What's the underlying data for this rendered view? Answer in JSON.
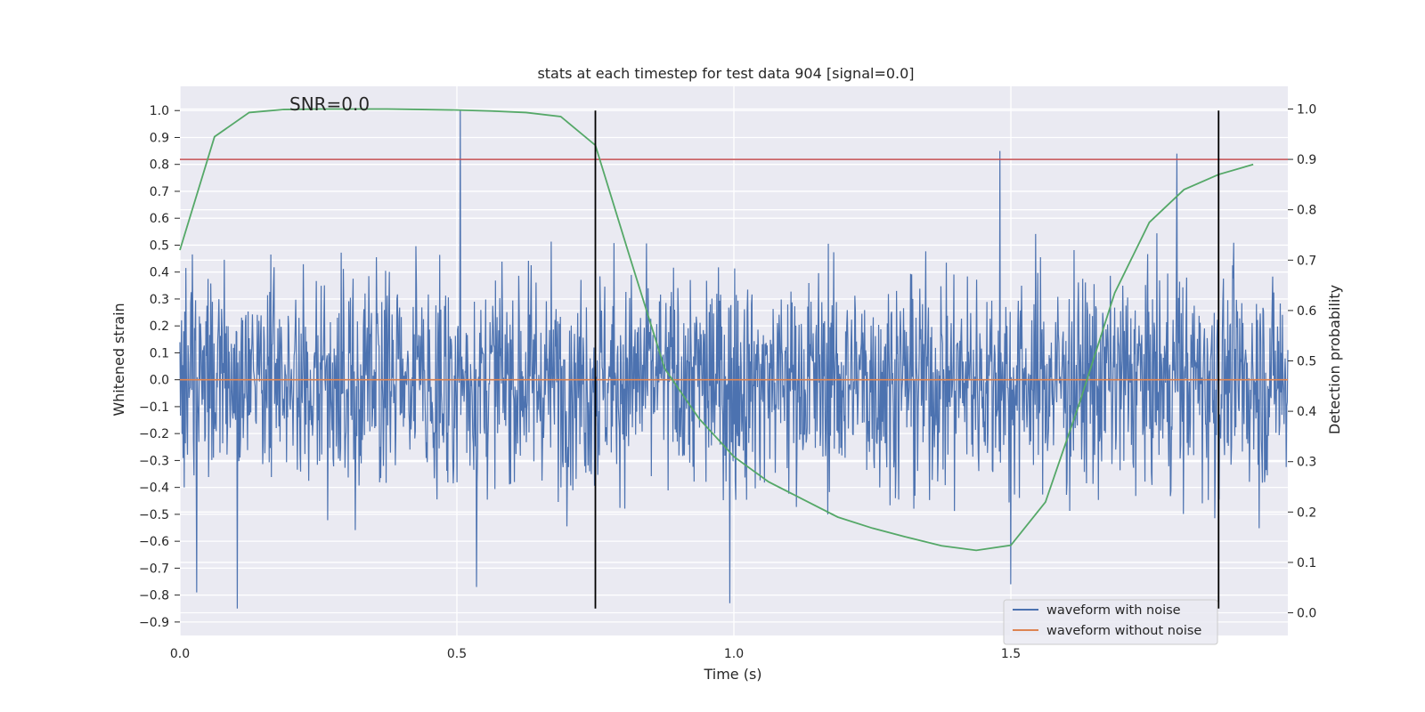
{
  "chart_data": {
    "type": "line",
    "title": "stats at each timestep for test data 904 [signal=0.0]",
    "xlabel": "Time (s)",
    "ylabel": "Whitened strain",
    "y2label": "Detection probability",
    "annotation": "SNR=0.0",
    "xlim": [
      0.0,
      2.0
    ],
    "ylim": [
      -0.95,
      1.09
    ],
    "y2lim": [
      -0.045,
      1.045
    ],
    "xticks": [
      0.0,
      0.5,
      1.0,
      1.5
    ],
    "xtick_labels": [
      "0.0",
      "0.5",
      "1.0",
      "1.5"
    ],
    "yticks": [
      1.0,
      0.9,
      0.8,
      0.7,
      0.6,
      0.5,
      0.4,
      0.3,
      0.2,
      0.1,
      0.0,
      -0.1,
      -0.2,
      -0.3,
      -0.4,
      -0.5,
      -0.6,
      -0.7,
      -0.8,
      -0.9
    ],
    "ytick_labels": [
      "1.0",
      "0.9",
      "0.8",
      "0.7",
      "0.6",
      "0.5",
      "0.4",
      "0.3",
      "0.2",
      "0.1",
      "0.0",
      "−0.1",
      "−0.2",
      "−0.3",
      "−0.4",
      "−0.5",
      "−0.6",
      "−0.7",
      "−0.8",
      "−0.9"
    ],
    "y2ticks": [
      1.0,
      0.9,
      0.8,
      0.7,
      0.6,
      0.5,
      0.4,
      0.3,
      0.2,
      0.1,
      0.0
    ],
    "y2tick_labels": [
      "1.0",
      "0.9",
      "0.8",
      "0.7",
      "0.6",
      "0.5",
      "0.4",
      "0.3",
      "0.2",
      "0.1",
      "0.0"
    ],
    "grid": true,
    "legend_position": "bottom-right",
    "series": [
      {
        "name": "waveform with noise",
        "axis": "left",
        "color": "#4c72b0",
        "description": "noise trace, 2048 samples over 0-2 s, amplitude roughly -0.85 to 1.0",
        "sample_count": 2048,
        "x_range": [
          0.0,
          2.0
        ],
        "peaks": [
          {
            "x": 0.506,
            "y": 1.0
          },
          {
            "x": 1.48,
            "y": 0.85
          },
          {
            "x": 1.8,
            "y": 0.84
          },
          {
            "x": 0.104,
            "y": -0.85
          },
          {
            "x": 0.03,
            "y": -0.79
          },
          {
            "x": 0.993,
            "y": -0.83
          },
          {
            "x": 0.535,
            "y": -0.77
          },
          {
            "x": 1.5,
            "y": -0.76
          }
        ]
      },
      {
        "name": "waveform without noise",
        "axis": "left",
        "color": "#dd8452",
        "x": [
          0.0,
          2.0
        ],
        "y": [
          0.0,
          0.0
        ]
      },
      {
        "name": "detection probability",
        "axis": "right",
        "color": "#55a868",
        "x": [
          0.0,
          0.0625,
          0.125,
          0.1875,
          0.25,
          0.3125,
          0.375,
          0.4375,
          0.5,
          0.5625,
          0.625,
          0.6875,
          0.75,
          0.8125,
          0.875,
          0.9375,
          1.0,
          1.0625,
          1.125,
          1.1875,
          1.25,
          1.3125,
          1.375,
          1.4375,
          1.5,
          1.5625,
          1.625,
          1.6875,
          1.75,
          1.8125,
          1.875,
          1.9375
        ],
        "y": [
          0.72,
          0.945,
          0.993,
          0.999,
          1.0,
          1.0,
          1.0,
          0.999,
          0.998,
          0.996,
          0.993,
          0.985,
          0.928,
          0.705,
          0.485,
          0.385,
          0.31,
          0.26,
          0.225,
          0.19,
          0.168,
          0.15,
          0.133,
          0.124,
          0.134,
          0.22,
          0.42,
          0.635,
          0.775,
          0.84,
          0.87,
          0.89
        ]
      }
    ],
    "threshold": {
      "axis": "right",
      "y": 0.9,
      "color": "#c44e52"
    },
    "vertical_markers": [
      {
        "x": 0.75,
        "y_range": [
          -0.85,
          1.0
        ],
        "color": "#000000"
      },
      {
        "x": 1.875,
        "y_range": [
          -0.85,
          1.0
        ],
        "color": "#000000"
      }
    ],
    "legend": [
      "waveform with noise",
      "waveform without noise"
    ]
  }
}
